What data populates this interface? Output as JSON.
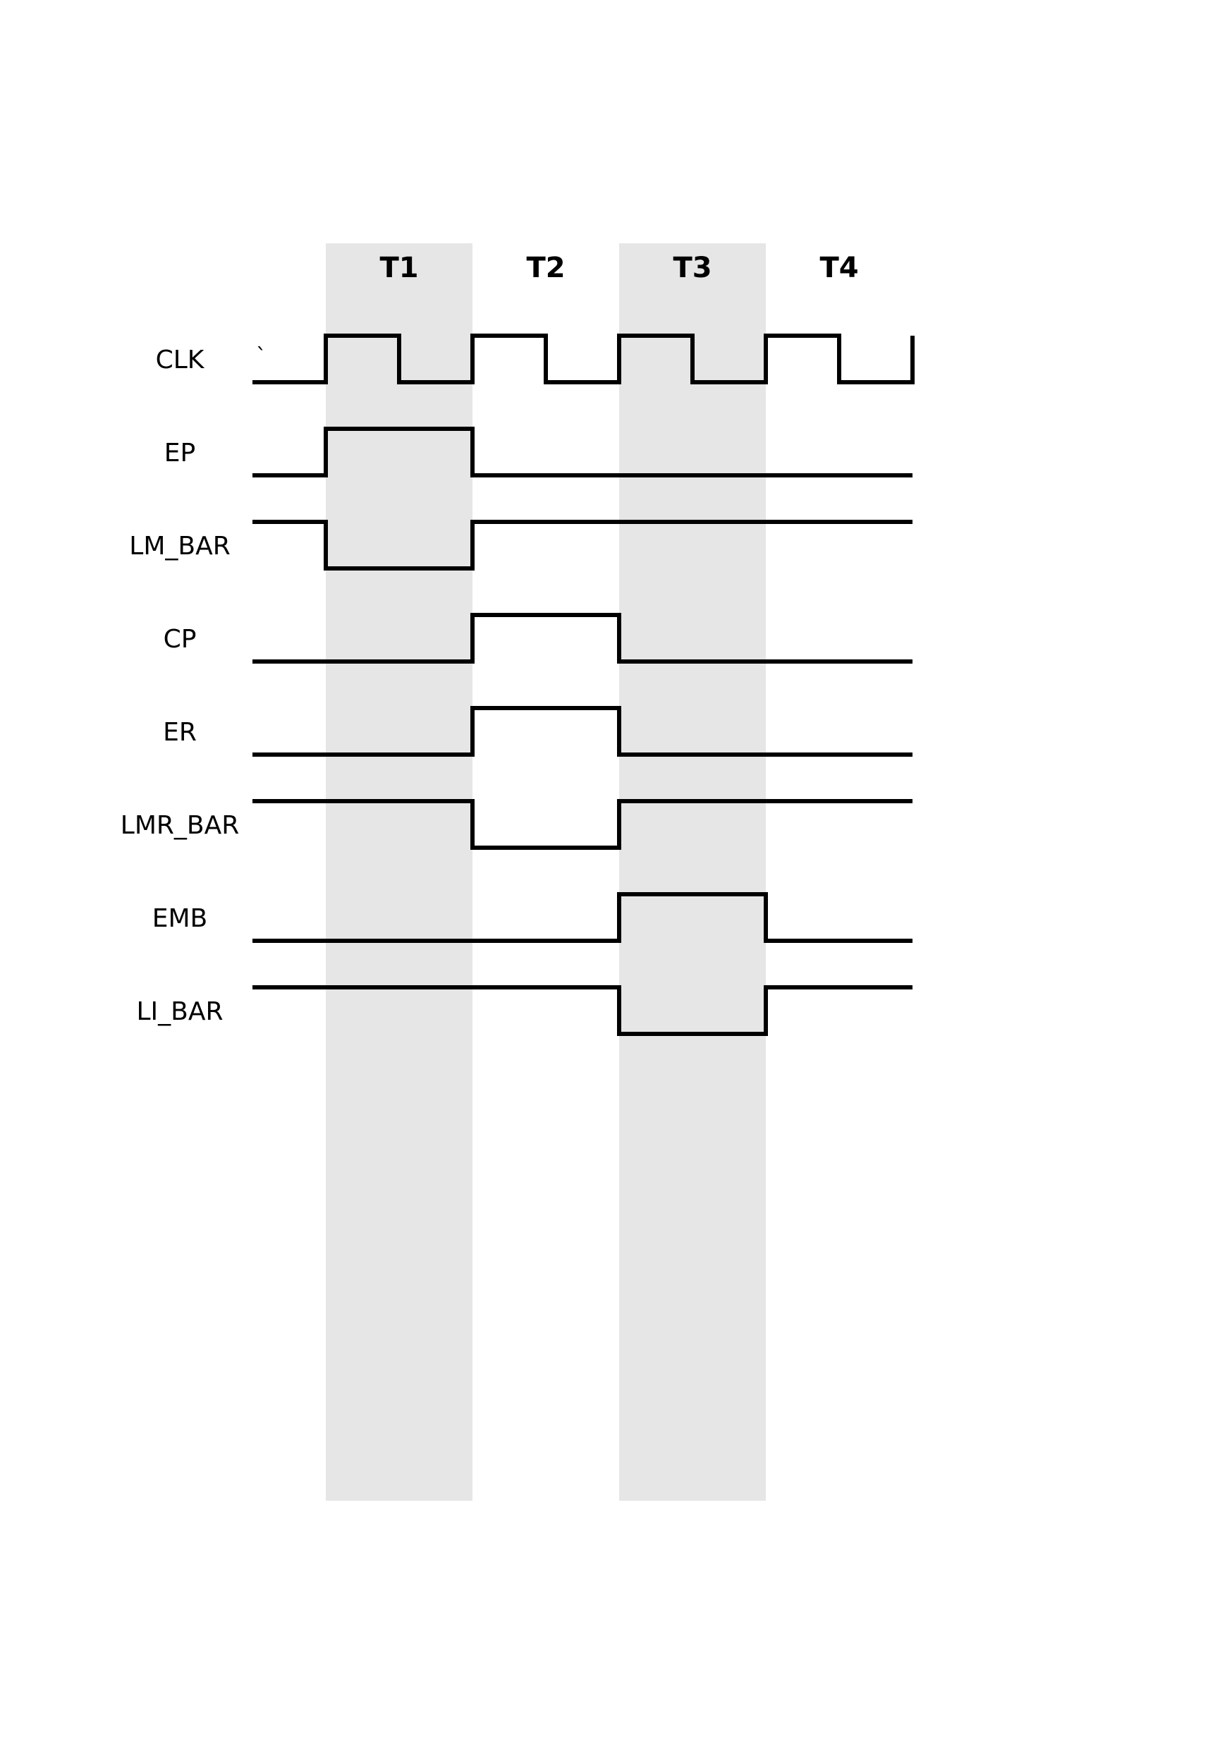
{
  "timing": {
    "phases": [
      {
        "label": "T1",
        "shaded": true
      },
      {
        "label": "T2",
        "shaded": false
      },
      {
        "label": "T3",
        "shaded": true
      },
      {
        "label": "T4",
        "shaded": false
      }
    ],
    "clock_mark": "`",
    "signals": [
      {
        "name": "CLK",
        "type": "clock",
        "states": [
          [
            1,
            0
          ],
          [
            1,
            0
          ],
          [
            1,
            0
          ],
          [
            1,
            0
          ]
        ]
      },
      {
        "name": "EP",
        "type": "level",
        "initial": 0,
        "states": [
          1,
          0,
          0,
          0
        ]
      },
      {
        "name": "LM_BAR",
        "type": "level",
        "initial": 1,
        "states": [
          0,
          1,
          1,
          1
        ]
      },
      {
        "name": "CP",
        "type": "level",
        "initial": 0,
        "states": [
          0,
          1,
          0,
          0
        ]
      },
      {
        "name": "ER",
        "type": "level",
        "initial": 0,
        "states": [
          0,
          1,
          0,
          0
        ]
      },
      {
        "name": "LMR_BAR",
        "type": "level",
        "initial": 1,
        "states": [
          1,
          0,
          1,
          1
        ]
      },
      {
        "name": "EMB",
        "type": "level",
        "initial": 0,
        "states": [
          0,
          0,
          1,
          0
        ]
      },
      {
        "name": "LI_BAR",
        "type": "level",
        "initial": 1,
        "states": [
          1,
          1,
          0,
          1
        ]
      }
    ]
  }
}
